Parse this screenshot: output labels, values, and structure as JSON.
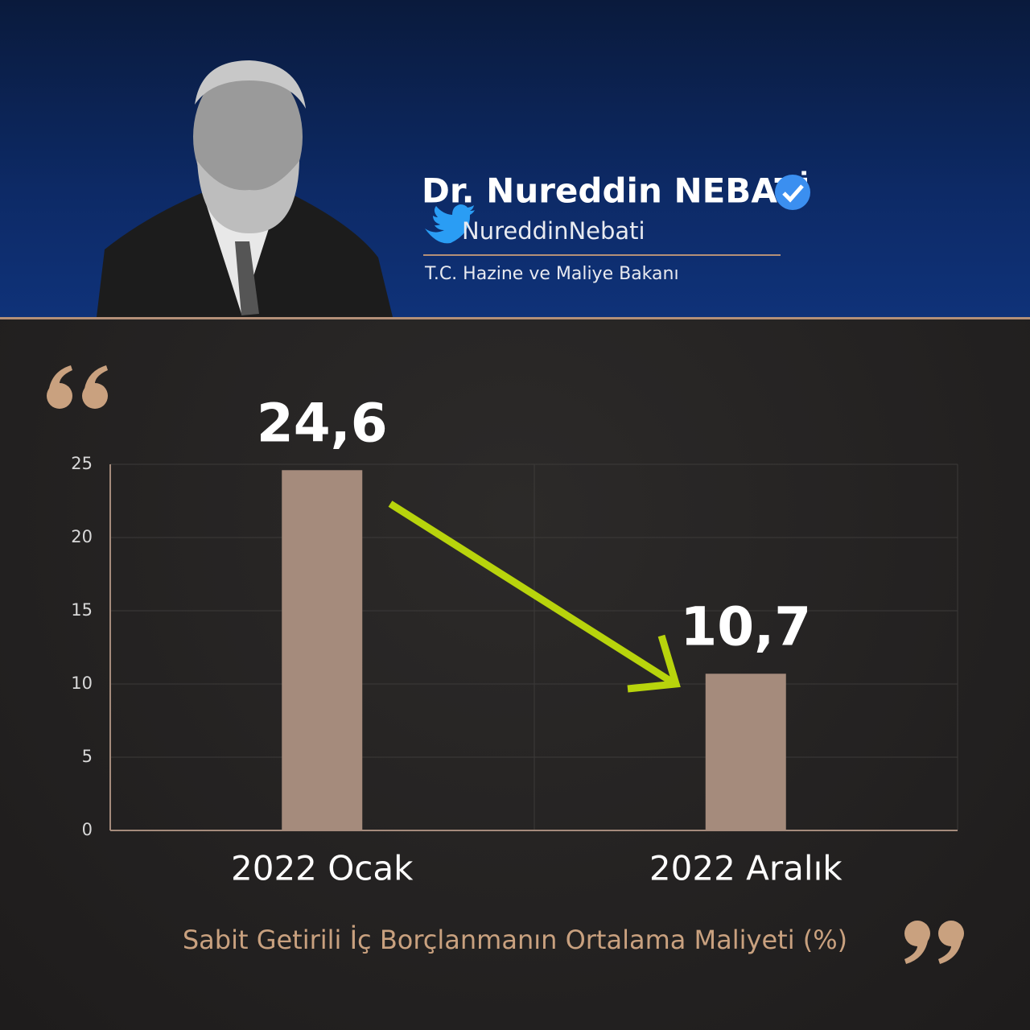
{
  "header": {
    "name": "Dr. Nureddin NEBATİ",
    "handle": "NureddinNebati",
    "role": "T.C. Hazine ve Maliye Bakanı"
  },
  "chart_data": {
    "type": "bar",
    "caption": "Sabit Getirili İç Borçlanmanın Ortalama Maliyeti (%)",
    "categories": [
      "2022 Ocak",
      "2022 Aralık"
    ],
    "values": [
      24.6,
      10.7
    ],
    "value_labels": [
      "24,6",
      "10,7"
    ],
    "color": "#a58b7c",
    "ylim": [
      0,
      25
    ],
    "yticks": [
      0,
      5,
      10,
      15,
      20,
      25
    ],
    "grid": true
  }
}
